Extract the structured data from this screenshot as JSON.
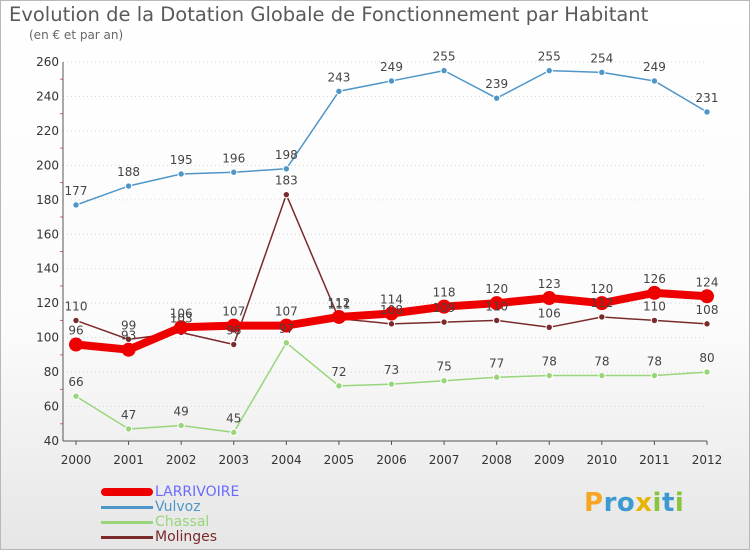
{
  "header": {
    "title": "Evolution de la Dotation Globale de Fonctionnement par Habitant",
    "subtitle": "(en € et par an)"
  },
  "logo": {
    "text": "Proxiti",
    "letters": [
      {
        "ch": "P",
        "color": "#f5a623"
      },
      {
        "ch": "r",
        "color": "#3d9ad1"
      },
      {
        "ch": "o",
        "color": "#3d9ad1"
      },
      {
        "ch": "x",
        "color": "#e8b400"
      },
      {
        "ch": "i",
        "color": "#8ac43f"
      },
      {
        "ch": "t",
        "color": "#3d9ad1"
      },
      {
        "ch": "i",
        "color": "#8ac43f"
      }
    ]
  },
  "chart_data": {
    "type": "line",
    "title": "Evolution de la Dotation Globale de Fonctionnement par Habitant",
    "subtitle": "(en € et par an)",
    "xlabel": "",
    "ylabel": "",
    "categories": [
      "2000",
      "2001",
      "2002",
      "2003",
      "2004",
      "2005",
      "2006",
      "2007",
      "2008",
      "2009",
      "2010",
      "2011",
      "2012"
    ],
    "ylim": [
      40,
      260
    ],
    "yticks": [
      40,
      60,
      80,
      100,
      120,
      140,
      160,
      180,
      200,
      220,
      240,
      260
    ],
    "grid": true,
    "legend_position": "bottom-left",
    "series": [
      {
        "name": "Vulvoz",
        "color": "#4f96c8",
        "label_color": "#444444",
        "line_style": "thin",
        "values": [
          177,
          188,
          195,
          196,
          198,
          243,
          249,
          255,
          239,
          255,
          254,
          249,
          231
        ]
      },
      {
        "name": "Chassal",
        "color": "#99d57a",
        "label_color": "#444444",
        "line_style": "thin",
        "values": [
          66,
          47,
          49,
          45,
          97,
          72,
          73,
          75,
          77,
          78,
          78,
          78,
          80
        ]
      },
      {
        "name": "Molinges",
        "color": "#7a2a2a",
        "label_color": "#444444",
        "line_style": "thin",
        "values": [
          110,
          99,
          103,
          96,
          183,
          111,
          108,
          109,
          110,
          106,
          112,
          110,
          108
        ]
      },
      {
        "name": "LARRIVOIRE",
        "color": "#ee0000",
        "label_color": "#6a6aff",
        "line_style": "thick",
        "values": [
          96,
          93,
          106,
          107,
          107,
          112,
          114,
          118,
          120,
          123,
          120,
          126,
          124
        ]
      }
    ],
    "legend_order": [
      "LARRIVOIRE",
      "Vulvoz",
      "Chassal",
      "Molinges"
    ]
  }
}
